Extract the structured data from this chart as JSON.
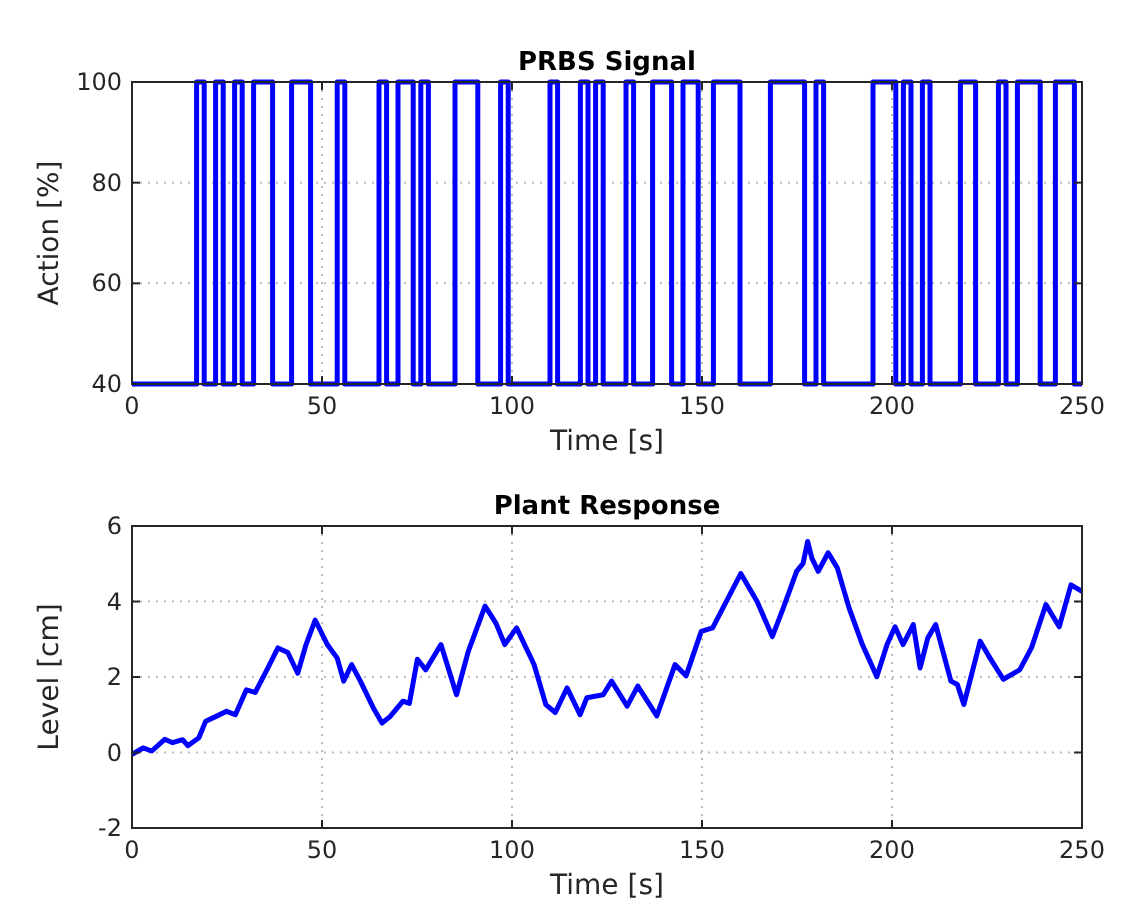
{
  "chart_data": [
    {
      "type": "step",
      "title": "PRBS Signal",
      "xlabel": "Time [s]",
      "ylabel": "Action [%]",
      "color": "#0000ff",
      "grid": true,
      "x": [
        0,
        17,
        19,
        22,
        24,
        27,
        29,
        32,
        37,
        42,
        47,
        54,
        56,
        65,
        67,
        70,
        74,
        76,
        78,
        85,
        91,
        97,
        99,
        110,
        112,
        118,
        120,
        122,
        124,
        130,
        132,
        137,
        142,
        145,
        149,
        153,
        160,
        168,
        177,
        180,
        182,
        195,
        201,
        203,
        205,
        208,
        210,
        218,
        222,
        228,
        230,
        233,
        239,
        243,
        248,
        250
      ],
      "values": [
        40,
        100,
        40,
        100,
        40,
        100,
        40,
        100,
        40,
        100,
        40,
        100,
        40,
        100,
        40,
        100,
        40,
        100,
        40,
        100,
        40,
        100,
        40,
        100,
        40,
        100,
        40,
        100,
        40,
        100,
        40,
        100,
        40,
        100,
        40,
        100,
        40,
        100,
        40,
        100,
        40,
        100,
        40,
        100,
        40,
        100,
        40,
        100,
        40,
        100,
        40,
        100,
        40,
        100,
        40,
        40
      ],
      "xlim": [
        0,
        250
      ],
      "xticks": [
        0,
        50,
        100,
        150,
        200,
        250
      ],
      "ylim": [
        40,
        100
      ],
      "yticks": [
        40,
        60,
        80,
        100
      ]
    },
    {
      "type": "line",
      "title": "Plant Response",
      "xlabel": "Time [s]",
      "ylabel": "Level [cm]",
      "color": "#0000ff",
      "grid": true,
      "x": [
        0,
        2.9,
        5.2,
        8.6,
        10.7,
        13.3,
        14.7,
        17.6,
        19.4,
        22,
        24.9,
        27.2,
        30.1,
        32.4,
        35.3,
        38.4,
        41,
        43.6,
        45.8,
        48.2,
        51.4,
        54,
        55.7,
        57.8,
        60.1,
        63.5,
        65.8,
        67.9,
        71.3,
        73,
        75.1,
        77.3,
        81.3,
        85.4,
        88.5,
        92.9,
        95.8,
        98.1,
        101.2,
        105.8,
        108.9,
        111.4,
        114.5,
        117.9,
        119.7,
        124,
        126.2,
        130.3,
        133.1,
        138.1,
        142.9,
        145.8,
        149.8,
        152.8,
        160.2,
        164.5,
        168.5,
        171.4,
        174.9,
        176.6,
        177.8,
        178.9,
        180.6,
        183.2,
        185.6,
        188.7,
        192.2,
        196,
        198.7,
        200.8,
        202.9,
        205.6,
        207.4,
        209.4,
        211.5,
        215.5,
        217.2,
        218.9,
        223.2,
        225.8,
        229.3,
        233.6,
        236.7,
        240.5,
        244,
        247.1,
        250
      ],
      "values": [
        -0.05,
        0.12,
        0.04,
        0.35,
        0.26,
        0.34,
        0.18,
        0.39,
        0.83,
        0.95,
        1.09,
        1.0,
        1.66,
        1.59,
        2.15,
        2.77,
        2.65,
        2.1,
        2.86,
        3.51,
        2.86,
        2.5,
        1.89,
        2.33,
        1.89,
        1.18,
        0.78,
        0.95,
        1.36,
        1.3,
        2.47,
        2.19,
        2.86,
        1.53,
        2.68,
        3.88,
        3.42,
        2.86,
        3.3,
        2.33,
        1.27,
        1.06,
        1.71,
        1.0,
        1.45,
        1.53,
        1.89,
        1.23,
        1.76,
        0.97,
        2.33,
        2.03,
        3.21,
        3.3,
        4.74,
        4.0,
        3.07,
        3.83,
        4.8,
        5.01,
        5.59,
        5.15,
        4.8,
        5.29,
        4.89,
        3.83,
        2.86,
        2.01,
        2.86,
        3.33,
        2.86,
        3.39,
        2.24,
        3.03,
        3.39,
        1.89,
        1.8,
        1.27,
        2.95,
        2.5,
        1.94,
        2.19,
        2.77,
        3.92,
        3.33,
        4.44,
        4.27
      ],
      "xlim": [
        0,
        250
      ],
      "xticks": [
        0,
        50,
        100,
        150,
        200,
        250
      ],
      "ylim": [
        -2,
        6
      ],
      "yticks": [
        -2,
        0,
        2,
        4,
        6
      ]
    }
  ]
}
